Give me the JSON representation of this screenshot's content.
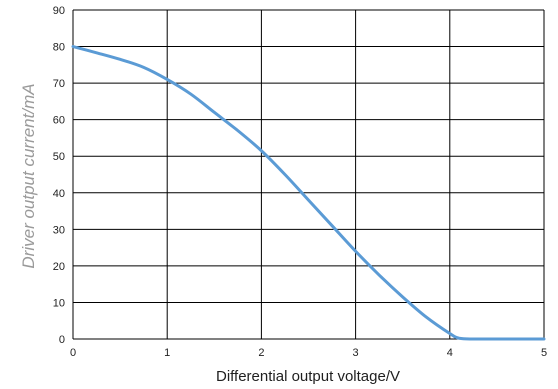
{
  "chart_data": {
    "type": "line",
    "title": "",
    "xlabel": "Differential output voltage/V",
    "ylabel": "Driver output current/mA",
    "xlim": [
      0,
      5
    ],
    "ylim": [
      0,
      90
    ],
    "x_ticks": [
      "0",
      "1",
      "2",
      "3",
      "4",
      "5"
    ],
    "y_ticks": [
      "0",
      "10",
      "20",
      "30",
      "40",
      "50",
      "60",
      "70",
      "80",
      "90"
    ],
    "grid": true,
    "legend": "none",
    "colors": {
      "line": "#5b9bd5",
      "grid": "#000000",
      "text": "#1f1f1f",
      "ylabel": "#9a9a9a"
    },
    "series": [
      {
        "x": [
          0,
          0.25,
          0.5,
          0.75,
          1.0,
          1.25,
          1.5,
          1.75,
          2.0,
          2.25,
          2.5,
          2.75,
          3.0,
          3.25,
          3.5,
          3.75,
          4.0,
          4.1,
          4.25,
          4.5,
          5.0
        ],
        "values": [
          80,
          78.3,
          76.5,
          74.3,
          71,
          67,
          62,
          57,
          51.5,
          45,
          38,
          31,
          24,
          17.5,
          11.5,
          6,
          1.5,
          0.2,
          0,
          0,
          0
        ]
      }
    ]
  }
}
